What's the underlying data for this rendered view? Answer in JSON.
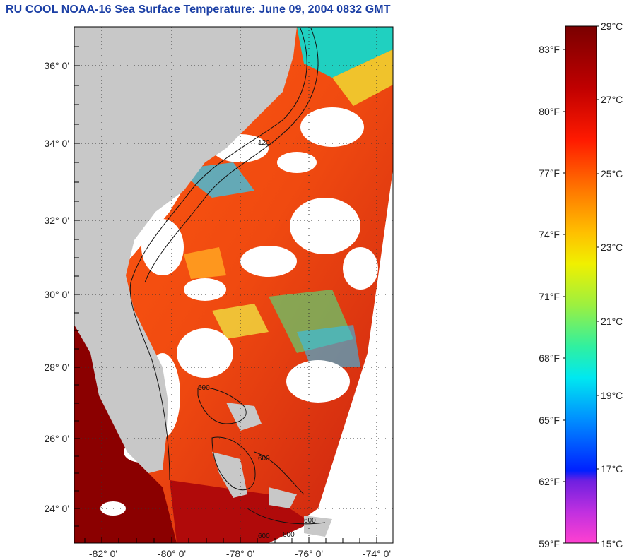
{
  "title": "RU COOL  NOAA-16  Sea Surface Temperature:  June 09, 2004 0832 GMT",
  "lat_labels": [
    "36° 0'",
    "34° 0'",
    "32° 0'",
    "30° 0'",
    "28° 0'",
    "26° 0'",
    "24° 0'"
  ],
  "lon_labels": [
    "-82° 0'",
    "-80° 0'",
    "-78° 0'",
    "-76° 0'",
    "-74° 0'"
  ],
  "contour_labels": [
    "600",
    "600",
    "600",
    "600",
    "600",
    "120"
  ],
  "colorbar": {
    "celsius": [
      "29°C",
      "27°C",
      "25°C",
      "23°C",
      "21°C",
      "19°C",
      "17°C",
      "15°C"
    ],
    "fahrenheit": [
      "83°F",
      "80°F",
      "77°F",
      "74°F",
      "71°F",
      "68°F",
      "65°F",
      "62°F",
      "59°F"
    ]
  },
  "colors": {
    "title": "#1b3fa5",
    "land": "#c8c8c8",
    "cloud": "#ffffff",
    "warm": "#e23a12",
    "hot": "#8b0000"
  }
}
